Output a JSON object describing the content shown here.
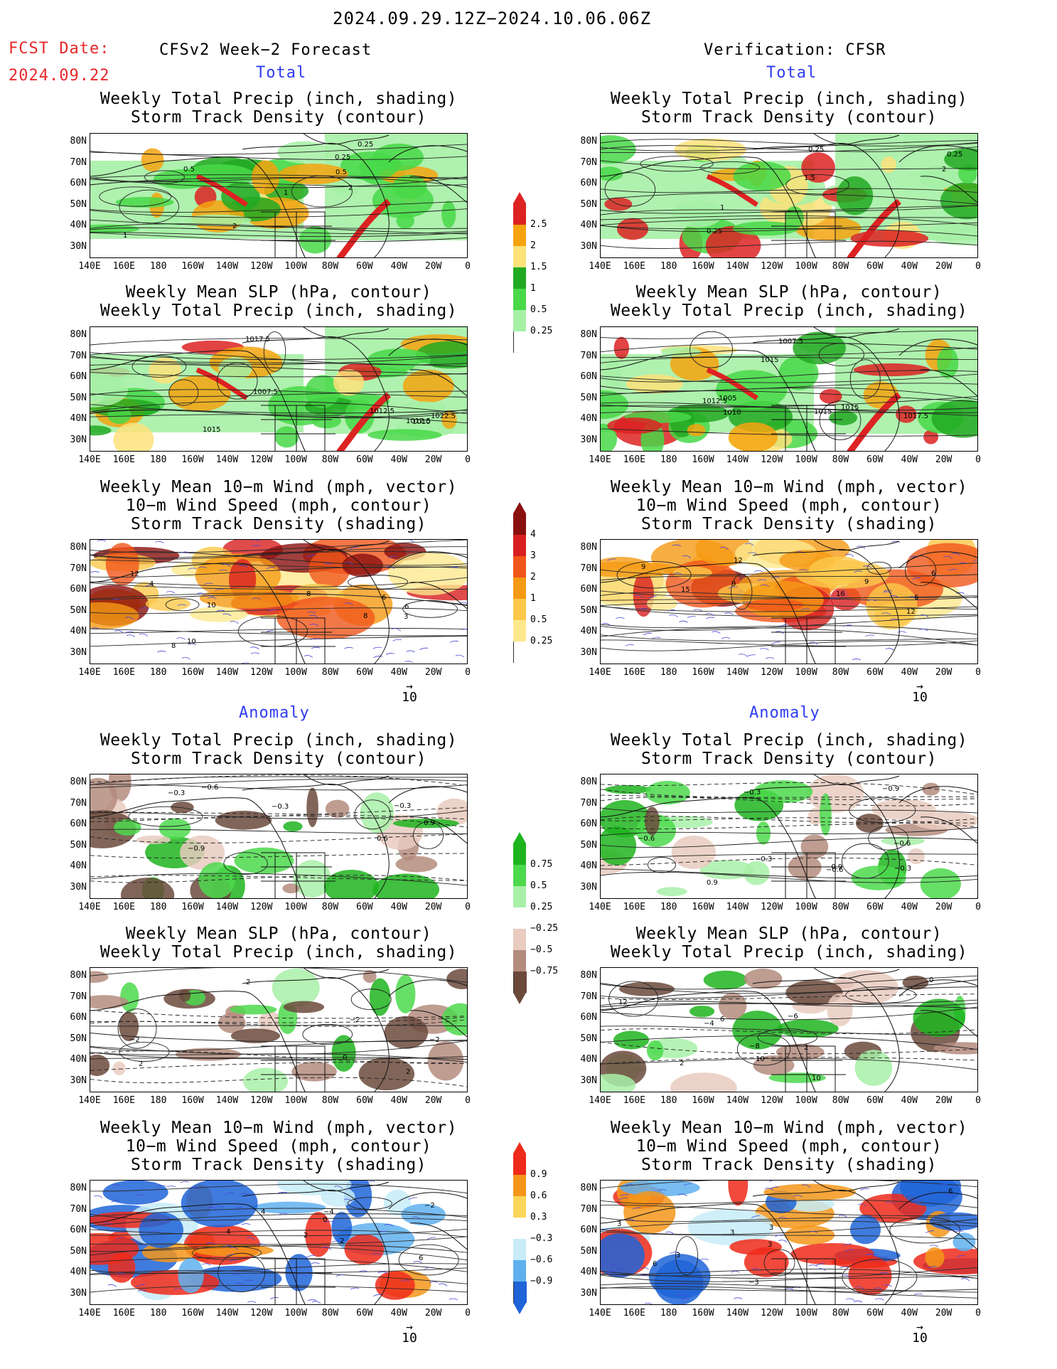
{
  "header": {
    "period": "2024.09.29.12Z−2024.10.06.06Z",
    "fcst_label": "FCST Date:",
    "fcst_date": "2024.09.22",
    "left_title": "CFSv2 Week−2 Forecast",
    "right_title": "Verification: CFSR"
  },
  "sections": {
    "total": "Total",
    "anomaly": "Anomaly"
  },
  "titles": {
    "precip_storm": [
      "Weekly Total Precip (inch, shading)",
      "Storm Track Density (contour)"
    ],
    "slp_precip": [
      "Weekly Mean SLP (hPa, contour)",
      "Weekly Total Precip (inch, shading)"
    ],
    "wind_storm": [
      "Weekly Mean 10−m Wind (mph, vector)",
      "10−m Wind Speed (mph, contour)",
      "Storm Track Density (shading)"
    ]
  },
  "axes": {
    "lat": [
      "80N",
      "70N",
      "60N",
      "50N",
      "40N",
      "30N"
    ],
    "lon": [
      "140E",
      "160E",
      "180",
      "160W",
      "140W",
      "120W",
      "100W",
      "80W",
      "60W",
      "40W",
      "20W",
      "0"
    ]
  },
  "vector_ref": "10",
  "colorbars": {
    "precip": {
      "labels": [
        "2.5",
        "2",
        "1.5",
        "1",
        "0.5",
        "0.25"
      ],
      "colors": [
        "#dd2222",
        "#f5a30f",
        "#fde27a",
        "#22a922",
        "#48d848",
        "#a6f0a6",
        "#ffffff"
      ]
    },
    "storm": {
      "labels": [
        "4",
        "3",
        "2",
        "1",
        "0.5",
        "0.25"
      ],
      "colors": [
        "#8a0f0f",
        "#d81e1e",
        "#f0561a",
        "#f59a14",
        "#fbc84a",
        "#fde88e",
        "#ffffff"
      ]
    },
    "precip_anom": {
      "labels": [
        "0.75",
        "0.5",
        "0.25",
        "−0.25",
        "−0.5",
        "−0.75"
      ],
      "colors": [
        "#1eb41e",
        "#4cd94c",
        "#a8f0a8",
        "#ffffff",
        "#e9cbbf",
        "#b48c7e",
        "#6b4a3c"
      ]
    },
    "storm_anom": {
      "labels": [
        "0.9",
        "0.6",
        "0.3",
        "−0.3",
        "−0.6",
        "−0.9"
      ],
      "colors": [
        "#ee2a1a",
        "#f5961a",
        "#fbd65a",
        "#ffffff",
        "#c7ecf8",
        "#5fb0ee",
        "#1e64d8"
      ]
    },
    "wind_anom": {
      "labels": [],
      "colors": []
    }
  },
  "panel_labels": {
    "p1": [
      "0.25",
      "0.5",
      "0.5",
      "0.25",
      "1",
      "2",
      "1",
      "2"
    ],
    "p2": [
      "0.25",
      "0.25",
      "0.25",
      "1.5",
      "2",
      "1"
    ],
    "p3": [
      "1012.5",
      "1010",
      "1015",
      "1007.5",
      "1017.5",
      "1012.5",
      "1022.5"
    ],
    "p4": [
      "1005",
      "1012.5",
      "1015",
      "1010",
      "1017.5",
      "1007.5",
      "1015",
      "1015"
    ],
    "p5": [
      "6",
      "8",
      "6",
      "8",
      "10",
      "12",
      "3",
      "8",
      "4",
      "10"
    ],
    "p6": [
      "9",
      "6",
      "15",
      "9",
      "9",
      "16",
      "12",
      "12",
      "6"
    ],
    "p7": [
      "−0.3",
      "−0.6",
      "−0.3",
      "0.9",
      "−0.3",
      "−0.9",
      "0.6"
    ],
    "p8": [
      "−0.3",
      "−0.9",
      "−0.9",
      "−0.6",
      "−0.6",
      "−0.3",
      "0.9",
      "−0.6",
      "−0.3"
    ],
    "p9": [
      "2",
      "−2",
      "2",
      "0",
      "−2",
      "2",
      "−2"
    ],
    "p10": [
      "10",
      "6",
      "−8",
      "10",
      "−6",
      "12",
      "2",
      "−4",
      "0",
      "2"
    ],
    "p11": [
      "6",
      "−4",
      "2",
      "4",
      "−2",
      "2",
      "0",
      "4"
    ],
    "p12": [
      "3",
      "6",
      "3",
      "3",
      "−3",
      "3",
      "6",
      "3"
    ]
  }
}
